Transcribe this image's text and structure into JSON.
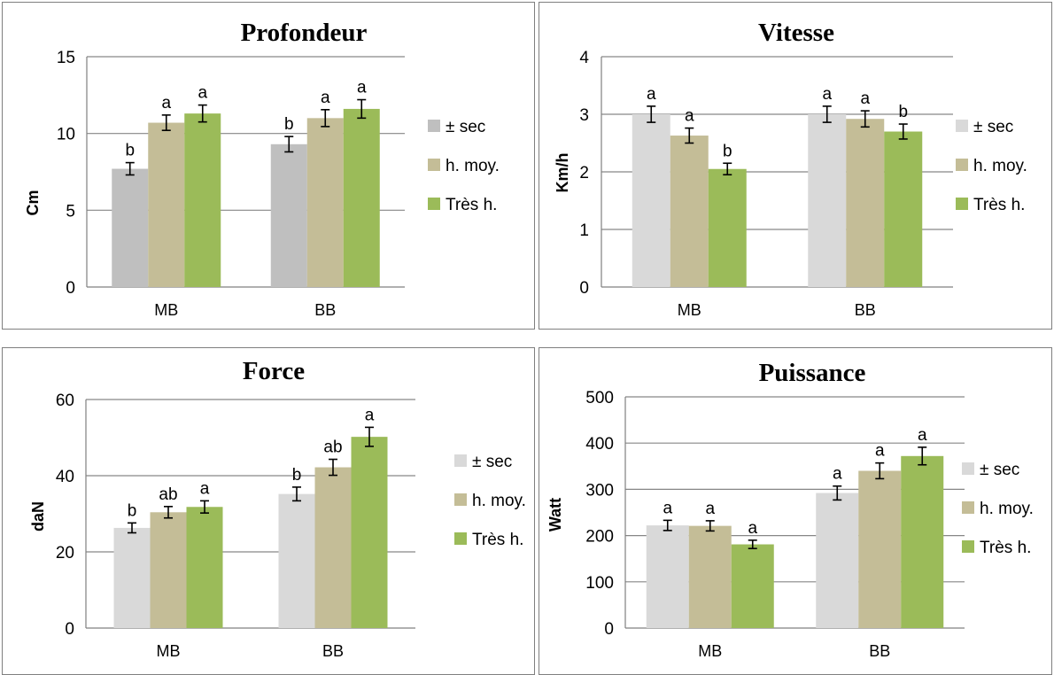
{
  "chart_data": [
    {
      "type": "bar",
      "title": "Profondeur",
      "ylabel": "Cm",
      "xlabel": "",
      "ylim": [
        0,
        15
      ],
      "yticks": [
        0,
        5,
        10,
        15
      ],
      "grid": true,
      "legend_position": "right",
      "categories": [
        "MB",
        "BB"
      ],
      "series": [
        {
          "name": "± sec",
          "color": "#bfbfbf",
          "values": [
            7.7,
            9.3
          ],
          "errors": [
            0.4,
            0.5
          ],
          "labels": [
            "b",
            "b"
          ]
        },
        {
          "name": "h. moy.",
          "color": "#c4bd97",
          "values": [
            10.7,
            11.0
          ],
          "errors": [
            0.5,
            0.55
          ],
          "labels": [
            "a",
            "a"
          ]
        },
        {
          "name": "Très h.",
          "color": "#9bbb59",
          "values": [
            11.3,
            11.6
          ],
          "errors": [
            0.55,
            0.6
          ],
          "labels": [
            "a",
            "a"
          ]
        }
      ]
    },
    {
      "type": "bar",
      "title": "Vitesse",
      "ylabel": "Km/h",
      "xlabel": "",
      "ylim": [
        0,
        4
      ],
      "yticks": [
        0,
        1,
        2,
        3,
        4
      ],
      "grid": true,
      "legend_position": "right",
      "categories": [
        "MB",
        "BB"
      ],
      "series": [
        {
          "name": "± sec",
          "color": "#d9d9d9",
          "values": [
            3.0,
            3.0
          ],
          "errors": [
            0.14,
            0.14
          ],
          "labels": [
            "a",
            "a"
          ]
        },
        {
          "name": "h. moy.",
          "color": "#c4bd97",
          "values": [
            2.63,
            2.92
          ],
          "errors": [
            0.13,
            0.14
          ],
          "labels": [
            "a",
            "a"
          ]
        },
        {
          "name": "Très h.",
          "color": "#9bbb59",
          "values": [
            2.05,
            2.7
          ],
          "errors": [
            0.1,
            0.13
          ],
          "labels": [
            "b",
            "b"
          ]
        }
      ]
    },
    {
      "type": "bar",
      "title": "Force",
      "ylabel": "daN",
      "xlabel": "",
      "ylim": [
        0,
        60
      ],
      "yticks": [
        0,
        20,
        40,
        60
      ],
      "grid": true,
      "legend_position": "right",
      "categories": [
        "MB",
        "BB"
      ],
      "series": [
        {
          "name": "± sec",
          "color": "#d9d9d9",
          "values": [
            26.3,
            35.2
          ],
          "errors": [
            1.3,
            1.8
          ],
          "labels": [
            "b",
            "b"
          ]
        },
        {
          "name": "h. moy.",
          "color": "#c4bd97",
          "values": [
            30.4,
            42.2
          ],
          "errors": [
            1.5,
            2.1
          ],
          "labels": [
            "ab",
            "ab"
          ]
        },
        {
          "name": "Très h.",
          "color": "#9bbb59",
          "values": [
            31.8,
            50.2
          ],
          "errors": [
            1.6,
            2.5
          ],
          "labels": [
            "a",
            "a"
          ]
        }
      ]
    },
    {
      "type": "bar",
      "title": "Puissance",
      "ylabel": "Watt",
      "xlabel": "",
      "ylim": [
        0,
        500
      ],
      "yticks": [
        0,
        100,
        200,
        300,
        400,
        500
      ],
      "grid": true,
      "legend_position": "right",
      "categories": [
        "MB",
        "BB"
      ],
      "series": [
        {
          "name": "± sec",
          "color": "#d9d9d9",
          "values": [
            222,
            292
          ],
          "errors": [
            11,
            15
          ],
          "labels": [
            "a",
            "a"
          ]
        },
        {
          "name": "h. moy.",
          "color": "#c4bd97",
          "values": [
            221,
            340
          ],
          "errors": [
            11,
            17
          ],
          "labels": [
            "a",
            "a"
          ]
        },
        {
          "name": "Très h.",
          "color": "#9bbb59",
          "values": [
            181,
            372
          ],
          "errors": [
            9,
            19
          ],
          "labels": [
            "a",
            "a"
          ]
        }
      ]
    }
  ]
}
